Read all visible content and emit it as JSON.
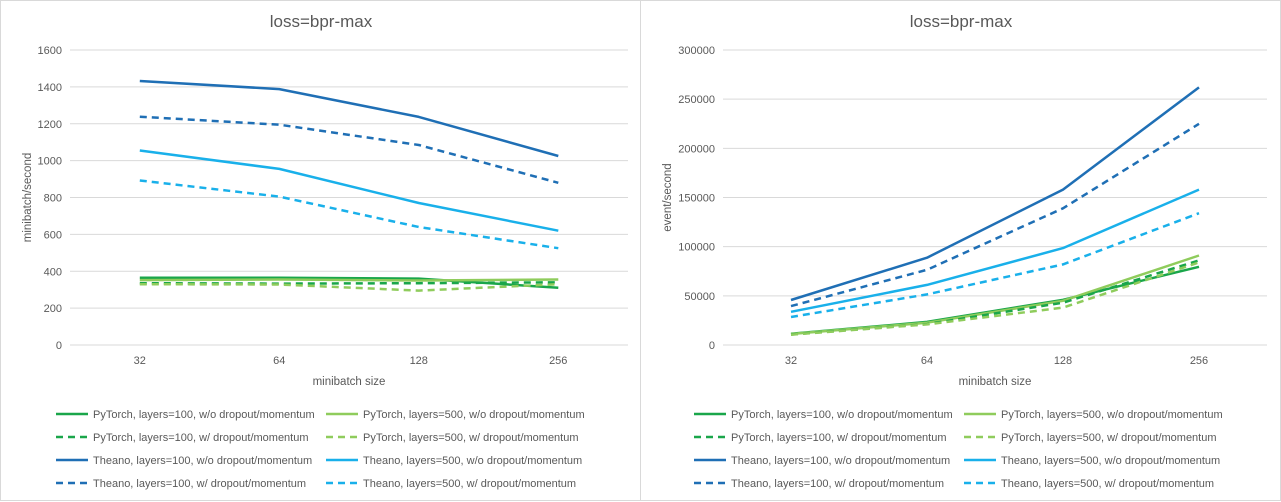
{
  "chart_data": [
    {
      "type": "line",
      "title": "loss=bpr-max",
      "xlabel": "minibatch size",
      "ylabel": "minibatch/second",
      "categories": [
        "32",
        "64",
        "128",
        "256"
      ],
      "ylim": [
        0,
        1600
      ],
      "yticks": [
        0,
        200,
        400,
        600,
        800,
        1000,
        1200,
        1400,
        1600
      ],
      "grid": true,
      "legend_position": "bottom",
      "series": [
        {
          "name": "PyTorch, layers=100, w/o dropout/momentum",
          "color": "#1aa64a",
          "dash": "solid",
          "values": [
            365,
            365,
            360,
            310
          ]
        },
        {
          "name": "PyTorch, layers=500, w/o dropout/momentum",
          "color": "#8fcc5c",
          "dash": "solid",
          "values": [
            352,
            355,
            350,
            355
          ]
        },
        {
          "name": "PyTorch, layers=100, w/ dropout/momentum",
          "color": "#1aa64a",
          "dash": "dash",
          "values": [
            335,
            333,
            335,
            340
          ]
        },
        {
          "name": "PyTorch, layers=500, w/ dropout/momentum",
          "color": "#8fcc5c",
          "dash": "dash",
          "values": [
            330,
            328,
            295,
            330
          ]
        },
        {
          "name": "Theano, layers=100, w/o dropout/momentum",
          "color": "#1f6fb5",
          "dash": "solid",
          "values": [
            1432,
            1388,
            1237,
            1025
          ]
        },
        {
          "name": "Theano, layers=500, w/o dropout/momentum",
          "color": "#19b0ea",
          "dash": "solid",
          "values": [
            1055,
            955,
            770,
            620
          ]
        },
        {
          "name": "Theano, layers=100, w/ dropout/momentum",
          "color": "#1f6fb5",
          "dash": "dash",
          "values": [
            1238,
            1195,
            1085,
            880
          ]
        },
        {
          "name": "Theano, layers=500, w/ dropout/momentum",
          "color": "#19b0ea",
          "dash": "dash",
          "values": [
            892,
            805,
            640,
            525
          ]
        }
      ]
    },
    {
      "type": "line",
      "title": "loss=bpr-max",
      "xlabel": "minibatch size",
      "ylabel": "event/second",
      "categories": [
        "32",
        "64",
        "128",
        "256"
      ],
      "ylim": [
        0,
        300000
      ],
      "yticks": [
        0,
        50000,
        100000,
        150000,
        200000,
        250000,
        300000
      ],
      "grid": true,
      "legend_position": "bottom",
      "series": [
        {
          "name": "PyTorch, layers=100, w/o dropout/momentum",
          "color": "#1aa64a",
          "dash": "solid",
          "values": [
            11500,
            23500,
            46000,
            79500
          ]
        },
        {
          "name": "PyTorch, layers=500, w/o dropout/momentum",
          "color": "#8fcc5c",
          "dash": "solid",
          "values": [
            11200,
            22700,
            45000,
            91000
          ]
        },
        {
          "name": "PyTorch, layers=100, w/ dropout/momentum",
          "color": "#1aa64a",
          "dash": "dash",
          "values": [
            10700,
            21300,
            43000,
            86000
          ]
        },
        {
          "name": "PyTorch, layers=500, w/ dropout/momentum",
          "color": "#8fcc5c",
          "dash": "dash",
          "values": [
            10500,
            21000,
            38000,
            84000
          ]
        },
        {
          "name": "Theano, layers=100, w/o dropout/momentum",
          "color": "#1f6fb5",
          "dash": "solid",
          "values": [
            45800,
            88800,
            158000,
            262000
          ]
        },
        {
          "name": "Theano, layers=500, w/o dropout/momentum",
          "color": "#19b0ea",
          "dash": "solid",
          "values": [
            33800,
            61100,
            98500,
            158000
          ]
        },
        {
          "name": "Theano, layers=100, w/ dropout/momentum",
          "color": "#1f6fb5",
          "dash": "dash",
          "values": [
            39600,
            76500,
            139000,
            225000
          ]
        },
        {
          "name": "Theano, layers=500, w/ dropout/momentum",
          "color": "#19b0ea",
          "dash": "dash",
          "values": [
            28500,
            51500,
            82000,
            134000
          ]
        }
      ]
    }
  ]
}
